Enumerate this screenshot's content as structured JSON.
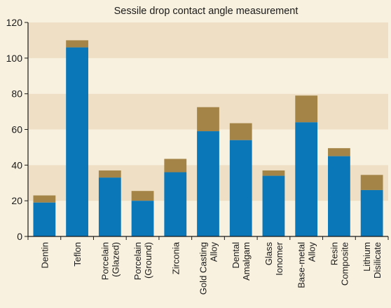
{
  "chart_data": {
    "type": "bar",
    "title": "Sessile drop contact angle measurement",
    "xlabel": "",
    "ylabel": "",
    "ylim": [
      0,
      120
    ],
    "yticks": [
      0,
      20,
      40,
      60,
      80,
      100,
      120
    ],
    "grid": "alternating horizontal bands",
    "categories": [
      [
        "Dentin"
      ],
      [
        "Teflon"
      ],
      [
        "Porcelain",
        "(Glazed)"
      ],
      [
        "Porcelain",
        "(Ground)"
      ],
      [
        "Zirconia"
      ],
      [
        "Gold Casting",
        "Alloy"
      ],
      [
        "Dental",
        "Amalgam"
      ],
      [
        "Glass",
        "Ionomer"
      ],
      [
        "Base-metal",
        "Alloy"
      ],
      [
        "Resin",
        "Composite"
      ],
      [
        "Lithium",
        "Disilicate"
      ]
    ],
    "series": [
      {
        "values": [
          19,
          106,
          33,
          20,
          36,
          59,
          54,
          34,
          64,
          45,
          26
        ],
        "color": "#0a77b9"
      },
      {
        "values": [
          4,
          4,
          4,
          5.5,
          7.5,
          13.5,
          9.5,
          3,
          15,
          4.5,
          8.5
        ],
        "color": "#a58547"
      }
    ],
    "colors": {
      "background": "#f9f1df",
      "band_light": "#f9f1df",
      "band_dark": "#eedfc5",
      "axis": "#1a1a1a"
    }
  }
}
